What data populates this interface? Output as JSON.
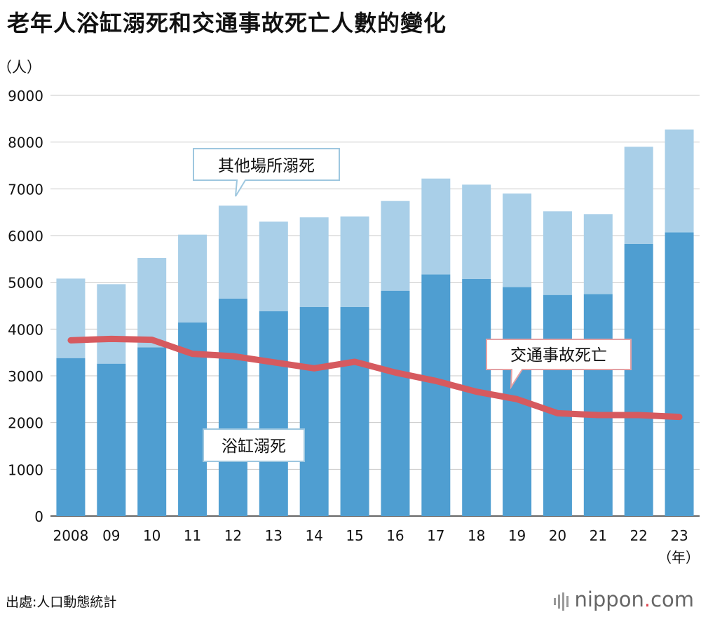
{
  "title": "老年人浴缸溺死和交通事故死亡人數的變化",
  "source": "出處:人口動態統計",
  "brand": {
    "name": "nippon",
    "dot": ".",
    "suffix": "com"
  },
  "colors": {
    "bath": "#4f9ed1",
    "other": "#a9cfe8",
    "traffic": "#d65a5f",
    "grid": "#c8c8c8"
  },
  "chart_data": {
    "type": "bar",
    "stacked": true,
    "ylabel": "（人）",
    "xlabel": "（年）",
    "ylim": [
      0,
      9000
    ],
    "yticks": [
      0,
      1000,
      2000,
      3000,
      4000,
      5000,
      6000,
      7000,
      8000,
      9000
    ],
    "categories": [
      "2008",
      "09",
      "10",
      "11",
      "12",
      "13",
      "14",
      "15",
      "16",
      "17",
      "18",
      "19",
      "20",
      "21",
      "22",
      "23"
    ],
    "series": [
      {
        "name": "浴缸溺死",
        "type": "bar",
        "values": [
          3380,
          3260,
          3610,
          4140,
          4650,
          4380,
          4470,
          4470,
          4820,
          5170,
          5070,
          4900,
          4730,
          4750,
          5820,
          6070
        ]
      },
      {
        "name": "其他場所溺死",
        "type": "bar",
        "values": [
          1700,
          1700,
          1910,
          1880,
          1990,
          1920,
          1920,
          1940,
          1920,
          2050,
          2020,
          2000,
          1790,
          1710,
          2080,
          2200
        ]
      },
      {
        "name": "交通事故死亡",
        "type": "line",
        "values": [
          3760,
          3790,
          3770,
          3470,
          3420,
          3290,
          3160,
          3300,
          3070,
          2890,
          2660,
          2500,
          2200,
          2160,
          2160,
          2120
        ]
      }
    ],
    "grid": true
  }
}
